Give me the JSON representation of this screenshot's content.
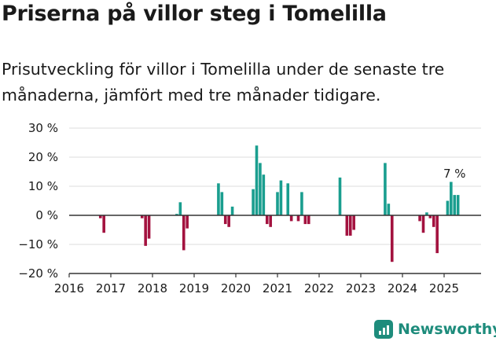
{
  "title": "Priserna på villor steg i Tomelilla",
  "subtitle": "Prisutveckling för villor i Tomelilla under de senaste tre månaderna, jämfört med tre månader tidigare.",
  "brand": {
    "name": "Newsworthy",
    "icon": "bar-chart-icon"
  },
  "colors": {
    "positive": "#1a9e8f",
    "negative": "#a3123f",
    "axis": "#333333",
    "grid": "#dddddd"
  },
  "chart_data": {
    "type": "bar",
    "yunit": "%",
    "ylim": [
      -20,
      30
    ],
    "yticks": [
      30,
      20,
      10,
      0,
      -10,
      -20
    ],
    "ytick_labels": [
      "30 %",
      "20 %",
      "10 %",
      "0 %",
      "−10 %",
      "−20 %"
    ],
    "xticks": [
      "2016",
      "2017",
      "2018",
      "2019",
      "2020",
      "2021",
      "2022",
      "2023",
      "2024",
      "2025"
    ],
    "annotation": {
      "text": "7 %",
      "x": "2025-04",
      "value": 7
    },
    "series": [
      {
        "points": [
          {
            "x": "2016-10",
            "y": -1
          },
          {
            "x": "2016-11",
            "y": -6
          },
          {
            "x": "2017-10",
            "y": -1
          },
          {
            "x": "2017-11",
            "y": -10.5
          },
          {
            "x": "2017-12",
            "y": -8
          },
          {
            "x": "2018-08",
            "y": 0.5
          },
          {
            "x": "2018-09",
            "y": 4.5
          },
          {
            "x": "2018-10",
            "y": -12
          },
          {
            "x": "2018-11",
            "y": -4.5
          },
          {
            "x": "2019-08",
            "y": 11
          },
          {
            "x": "2019-09",
            "y": 8
          },
          {
            "x": "2019-10",
            "y": -3
          },
          {
            "x": "2019-11",
            "y": -4
          },
          {
            "x": "2019-12",
            "y": 3
          },
          {
            "x": "2020-06",
            "y": 9
          },
          {
            "x": "2020-07",
            "y": 24
          },
          {
            "x": "2020-08",
            "y": 18
          },
          {
            "x": "2020-09",
            "y": 14
          },
          {
            "x": "2020-10",
            "y": -3
          },
          {
            "x": "2020-11",
            "y": -4
          },
          {
            "x": "2021-01",
            "y": 8
          },
          {
            "x": "2021-02",
            "y": 12
          },
          {
            "x": "2021-04",
            "y": 11
          },
          {
            "x": "2021-05",
            "y": -2
          },
          {
            "x": "2021-07",
            "y": -2
          },
          {
            "x": "2021-08",
            "y": 8
          },
          {
            "x": "2021-09",
            "y": -3
          },
          {
            "x": "2021-10",
            "y": -3
          },
          {
            "x": "2022-07",
            "y": 13
          },
          {
            "x": "2022-09",
            "y": -7
          },
          {
            "x": "2022-10",
            "y": -7
          },
          {
            "x": "2022-11",
            "y": -5
          },
          {
            "x": "2023-08",
            "y": 18
          },
          {
            "x": "2023-09",
            "y": 4
          },
          {
            "x": "2023-10",
            "y": -16
          },
          {
            "x": "2024-06",
            "y": -2
          },
          {
            "x": "2024-07",
            "y": -6
          },
          {
            "x": "2024-08",
            "y": 1
          },
          {
            "x": "2024-09",
            "y": -1
          },
          {
            "x": "2024-10",
            "y": -4
          },
          {
            "x": "2024-11",
            "y": -13
          },
          {
            "x": "2025-02",
            "y": 5
          },
          {
            "x": "2025-03",
            "y": 11.5
          },
          {
            "x": "2025-04",
            "y": 7
          },
          {
            "x": "2025-05",
            "y": 7
          }
        ]
      }
    ]
  }
}
